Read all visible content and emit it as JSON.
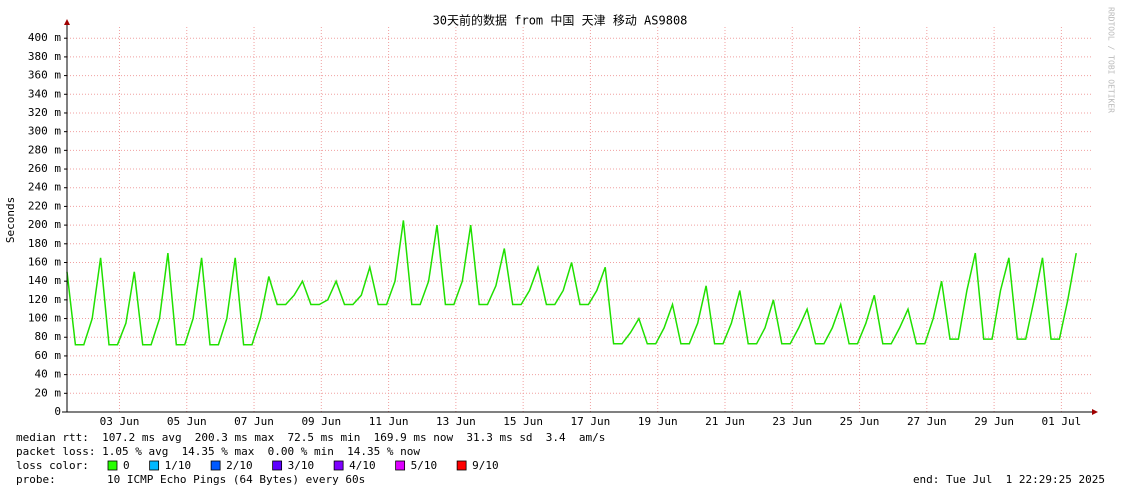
{
  "chart_data": {
    "type": "line",
    "title": "30天前的数据 from 中国 天津 移动 AS9808",
    "y_label": "Seconds",
    "watermark": "RRDTOOL / TOBI OETIKER",
    "color": "#20e000",
    "x": [
      0,
      0.25,
      0.5,
      0.75,
      1,
      1.25,
      1.5,
      1.75,
      2,
      2.25,
      2.5,
      2.75,
      3,
      3.25,
      3.5,
      3.75,
      4,
      4.25,
      4.5,
      4.75,
      5,
      5.25,
      5.5,
      5.75,
      6,
      6.25,
      6.5,
      6.75,
      7,
      7.25,
      7.5,
      7.75,
      8,
      8.25,
      8.5,
      8.75,
      9,
      9.25,
      9.5,
      9.75,
      10,
      10.25,
      10.5,
      10.75,
      11,
      11.25,
      11.5,
      11.75,
      12,
      12.25,
      12.5,
      12.75,
      13,
      13.25,
      13.5,
      13.75,
      14,
      14.25,
      14.5,
      14.75,
      15,
      15.25,
      15.5,
      15.75,
      16,
      16.25,
      16.5,
      16.75,
      17,
      17.25,
      17.5,
      17.75,
      18,
      18.25,
      18.5,
      18.75,
      19,
      19.25,
      19.5,
      19.75,
      20,
      20.25,
      20.5,
      20.75,
      21,
      21.25,
      21.5,
      21.75,
      22,
      22.25,
      22.5,
      22.75,
      23,
      23.25,
      23.5,
      23.75,
      24,
      24.25,
      24.5,
      24.75,
      25,
      25.25,
      25.5,
      25.75,
      26,
      26.25,
      26.5,
      26.75,
      27,
      27.25,
      27.5,
      27.75,
      28,
      28.25,
      28.5,
      28.75,
      29,
      29.25,
      29.5,
      29.75,
      30
    ],
    "values": [
      150,
      72,
      72,
      100,
      165,
      72,
      72,
      95,
      150,
      72,
      72,
      100,
      170,
      72,
      72,
      100,
      165,
      72,
      72,
      100,
      165,
      72,
      72,
      100,
      145,
      115,
      115,
      125,
      140,
      115,
      115,
      120,
      140,
      115,
      115,
      125,
      155,
      115,
      115,
      140,
      205,
      115,
      115,
      140,
      200,
      115,
      115,
      140,
      200,
      115,
      115,
      135,
      175,
      115,
      115,
      130,
      155,
      115,
      115,
      130,
      160,
      115,
      115,
      130,
      155,
      73,
      73,
      85,
      100,
      73,
      73,
      90,
      115,
      73,
      73,
      95,
      135,
      73,
      73,
      95,
      130,
      73,
      73,
      90,
      120,
      73,
      73,
      90,
      110,
      73,
      73,
      90,
      115,
      73,
      73,
      95,
      125,
      73,
      73,
      90,
      110,
      73,
      73,
      100,
      140,
      78,
      78,
      130,
      170,
      78,
      78,
      130,
      165,
      78,
      78,
      120,
      165,
      78,
      78,
      120,
      170
    ],
    "xlim": [
      0,
      30.5
    ],
    "xticks": [
      {
        "value": 1.56,
        "label": "03 Jun"
      },
      {
        "value": 3.56,
        "label": "05 Jun"
      },
      {
        "value": 5.56,
        "label": "07 Jun"
      },
      {
        "value": 7.56,
        "label": "09 Jun"
      },
      {
        "value": 9.56,
        "label": "11 Jun"
      },
      {
        "value": 11.56,
        "label": "13 Jun"
      },
      {
        "value": 13.56,
        "label": "15 Jun"
      },
      {
        "value": 15.56,
        "label": "17 Jun"
      },
      {
        "value": 17.56,
        "label": "19 Jun"
      },
      {
        "value": 19.56,
        "label": "21 Jun"
      },
      {
        "value": 21.56,
        "label": "23 Jun"
      },
      {
        "value": 23.56,
        "label": "25 Jun"
      },
      {
        "value": 25.56,
        "label": "27 Jun"
      },
      {
        "value": 27.56,
        "label": "29 Jun"
      },
      {
        "value": 29.56,
        "label": "01 Jul"
      }
    ],
    "ylim": [
      0,
      412
    ],
    "yticks": [
      0,
      {
        "value": 20,
        "label": "20 m"
      },
      {
        "value": 40,
        "label": "40 m"
      },
      {
        "value": 60,
        "label": "60 m"
      },
      {
        "value": 80,
        "label": "80 m"
      },
      {
        "value": 100,
        "label": "100 m"
      },
      {
        "value": 120,
        "label": "120 m"
      },
      {
        "value": 140,
        "label": "140 m"
      },
      {
        "value": 160,
        "label": "160 m"
      },
      {
        "value": 180,
        "label": "180 m"
      },
      {
        "value": 200,
        "label": "200 m"
      },
      {
        "value": 220,
        "label": "220 m"
      },
      {
        "value": 240,
        "label": "240 m"
      },
      {
        "value": 260,
        "label": "260 m"
      },
      {
        "value": 280,
        "label": "280 m"
      },
      {
        "value": 300,
        "label": "300 m"
      },
      {
        "value": 320,
        "label": "320 m"
      },
      {
        "value": 340,
        "label": "340 m"
      },
      {
        "value": 360,
        "label": "360 m"
      },
      {
        "value": 380,
        "label": "380 m"
      },
      {
        "value": 400,
        "label": "400 m"
      }
    ],
    "grid": true,
    "stats": [
      "median rtt:  107.2 ms avg  200.3 ms max  72.5 ms min  169.9 ms now  31.3 ms sd  3.4  am/s",
      "packet loss: 1.05 % avg  14.35 % max  0.00 % min  14.35 % now"
    ],
    "loss_color_label": "loss color:",
    "loss_colors": [
      {
        "label": "0",
        "color": "#26ff00"
      },
      {
        "label": "1/10",
        "color": "#00b8ff"
      },
      {
        "label": "2/10",
        "color": "#0059ff"
      },
      {
        "label": "3/10",
        "color": "#5e00ff"
      },
      {
        "label": "4/10",
        "color": "#7e00ff"
      },
      {
        "label": "5/10",
        "color": "#dd00ff"
      },
      {
        "label": "9/10",
        "color": "#ff0000"
      }
    ],
    "probe_label": "probe:",
    "probe": "10 ICMP Echo Pings (64 Bytes) every 60s",
    "end": "end: Tue Jul  1 22:29:25 2025"
  }
}
